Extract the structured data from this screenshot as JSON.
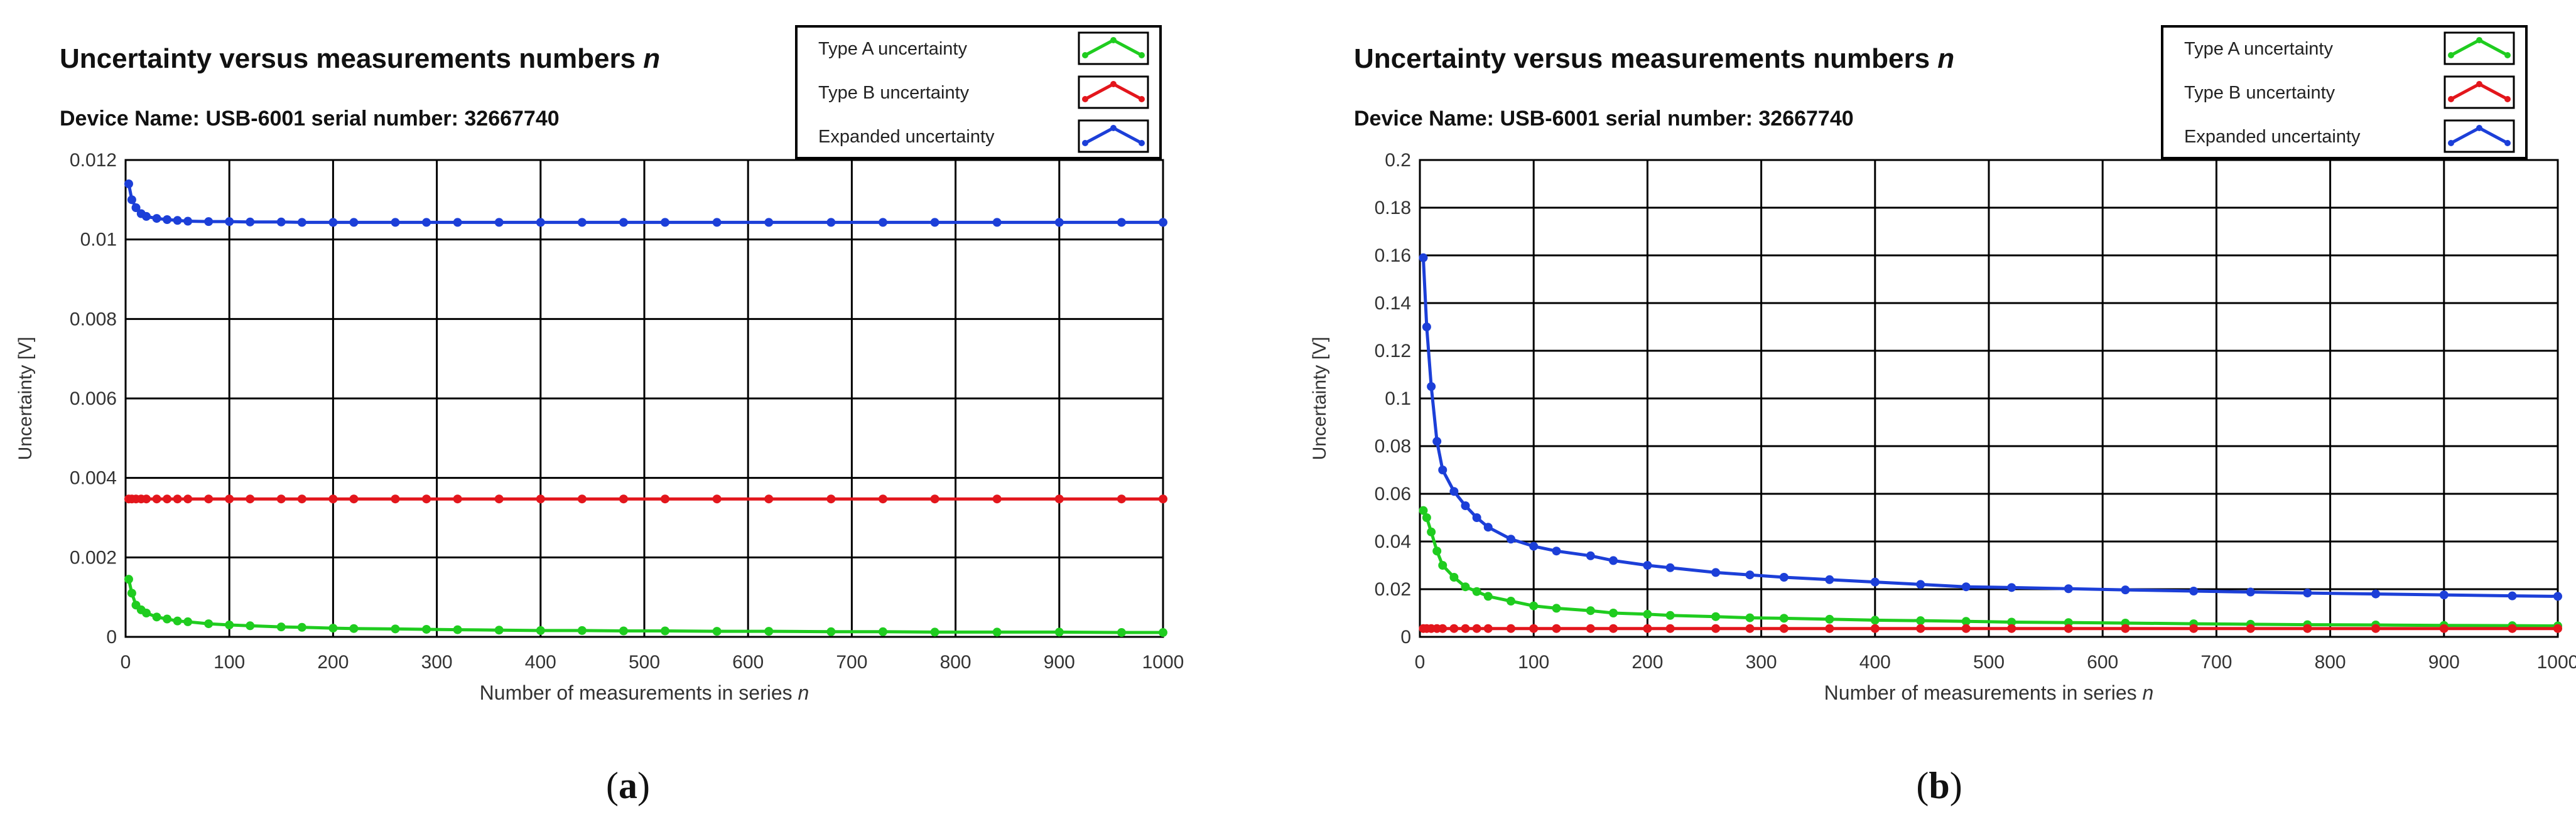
{
  "colors": {
    "type_a": "#1fcc1f",
    "type_b": "#e3161c",
    "expanded": "#1c3fd8",
    "grid": "#000000",
    "background": "#ffffff"
  },
  "chart_data": [
    {
      "type": "line",
      "panel": "a",
      "title_main": "Uncertainty versus measurements numbers ",
      "title_var": "n",
      "subtitle": "Device Name: USB-6001 serial number: 32667740",
      "xlabel_main": "Number of measurements in series ",
      "xlabel_var": "n",
      "ylabel": "Uncertainty [V]",
      "caption_letter": "a",
      "xlim": [
        0,
        1000
      ],
      "ylim": [
        0,
        0.012
      ],
      "x_ticks": [
        "0",
        "100",
        "200",
        "300",
        "400",
        "500",
        "600",
        "700",
        "800",
        "900",
        "1000"
      ],
      "y_ticks": [
        "0",
        "0.002",
        "0.004",
        "0.006",
        "0.008",
        "0.01",
        "0.012"
      ],
      "grid": true,
      "legend_position": "top-right",
      "series": [
        {
          "name": "Type A uncertainty",
          "color": "#1fcc1f",
          "x": [
            3,
            6,
            10,
            15,
            20,
            30,
            40,
            50,
            60,
            80,
            100,
            120,
            150,
            170,
            200,
            220,
            260,
            290,
            320,
            360,
            400,
            440,
            480,
            520,
            570,
            620,
            680,
            730,
            780,
            840,
            900,
            960,
            1000
          ],
          "y": [
            0.00145,
            0.0011,
            0.0008,
            0.00068,
            0.0006,
            0.0005,
            0.00045,
            0.0004,
            0.00038,
            0.00033,
            0.0003,
            0.00028,
            0.00025,
            0.00024,
            0.00022,
            0.00021,
            0.0002,
            0.00019,
            0.00018,
            0.00017,
            0.00016,
            0.00016,
            0.00015,
            0.00015,
            0.00014,
            0.00014,
            0.00013,
            0.00013,
            0.00012,
            0.00012,
            0.00012,
            0.00011,
            0.00011
          ]
        },
        {
          "name": "Type B uncertainty",
          "color": "#e3161c",
          "x": [
            3,
            6,
            10,
            15,
            20,
            30,
            40,
            50,
            60,
            80,
            100,
            120,
            150,
            170,
            200,
            220,
            260,
            290,
            320,
            360,
            400,
            440,
            480,
            520,
            570,
            620,
            680,
            730,
            780,
            840,
            900,
            960,
            1000
          ],
          "y": [
            0.00347,
            0.00347,
            0.00347,
            0.00347,
            0.00347,
            0.00347,
            0.00347,
            0.00347,
            0.00347,
            0.00347,
            0.00347,
            0.00347,
            0.00347,
            0.00347,
            0.00347,
            0.00347,
            0.00347,
            0.00347,
            0.00347,
            0.00347,
            0.00347,
            0.00347,
            0.00347,
            0.00347,
            0.00347,
            0.00347,
            0.00347,
            0.00347,
            0.00347,
            0.00347,
            0.00347,
            0.00347,
            0.00347
          ]
        },
        {
          "name": "Expanded uncertainty",
          "color": "#1c3fd8",
          "x": [
            3,
            6,
            10,
            15,
            20,
            30,
            40,
            50,
            60,
            80,
            100,
            120,
            150,
            170,
            200,
            220,
            260,
            290,
            320,
            360,
            400,
            440,
            480,
            520,
            570,
            620,
            680,
            730,
            780,
            840,
            900,
            960,
            1000
          ],
          "y": [
            0.0114,
            0.011,
            0.0108,
            0.01065,
            0.01058,
            0.01053,
            0.0105,
            0.01048,
            0.01046,
            0.01045,
            0.01045,
            0.01044,
            0.01044,
            0.01043,
            0.01043,
            0.01043,
            0.01043,
            0.01043,
            0.01043,
            0.01043,
            0.01043,
            0.01043,
            0.01043,
            0.01043,
            0.01043,
            0.01043,
            0.01043,
            0.01043,
            0.01043,
            0.01043,
            0.01043,
            0.01043,
            0.01043
          ]
        }
      ]
    },
    {
      "type": "line",
      "panel": "b",
      "title_main": "Uncertainty versus measurements numbers ",
      "title_var": "n",
      "subtitle": "Device Name: USB-6001 serial number: 32667740",
      "xlabel_main": "Number of measurements in series ",
      "xlabel_var": "n",
      "ylabel": "Uncertainty [V]",
      "caption_letter": "b",
      "xlim": [
        0,
        1000
      ],
      "ylim": [
        0,
        0.2
      ],
      "x_ticks": [
        "0",
        "100",
        "200",
        "300",
        "400",
        "500",
        "600",
        "700",
        "800",
        "900",
        "1000"
      ],
      "y_ticks": [
        "0",
        "0.02",
        "0.04",
        "0.06",
        "0.08",
        "0.1",
        "0.12",
        "0.14",
        "0.16",
        "0.18",
        "0.2"
      ],
      "grid": true,
      "legend_position": "top-right",
      "series": [
        {
          "name": "Type A uncertainty",
          "color": "#1fcc1f",
          "x": [
            3,
            6,
            10,
            15,
            20,
            30,
            40,
            50,
            60,
            80,
            100,
            120,
            150,
            170,
            200,
            220,
            260,
            290,
            320,
            360,
            400,
            440,
            480,
            520,
            570,
            620,
            680,
            730,
            780,
            840,
            900,
            960,
            1000
          ],
          "y": [
            0.053,
            0.05,
            0.044,
            0.036,
            0.03,
            0.025,
            0.021,
            0.019,
            0.017,
            0.015,
            0.013,
            0.012,
            0.011,
            0.01,
            0.0095,
            0.009,
            0.0085,
            0.008,
            0.0078,
            0.0074,
            0.007,
            0.0068,
            0.0065,
            0.0062,
            0.006,
            0.0058,
            0.0055,
            0.0053,
            0.0051,
            0.005,
            0.0048,
            0.0047,
            0.0046
          ]
        },
        {
          "name": "Type B uncertainty",
          "color": "#e3161c",
          "x": [
            3,
            6,
            10,
            15,
            20,
            30,
            40,
            50,
            60,
            80,
            100,
            120,
            150,
            170,
            200,
            220,
            260,
            290,
            320,
            360,
            400,
            440,
            480,
            520,
            570,
            620,
            680,
            730,
            780,
            840,
            900,
            960,
            1000
          ],
          "y": [
            0.0035,
            0.0035,
            0.0035,
            0.0035,
            0.0035,
            0.0035,
            0.0035,
            0.0035,
            0.0035,
            0.0035,
            0.0035,
            0.0035,
            0.0035,
            0.0035,
            0.0035,
            0.0035,
            0.0035,
            0.0035,
            0.0035,
            0.0035,
            0.0035,
            0.0035,
            0.0035,
            0.0035,
            0.0035,
            0.0035,
            0.0035,
            0.0035,
            0.0035,
            0.0035,
            0.0035,
            0.0035,
            0.0035
          ]
        },
        {
          "name": "Expanded uncertainty",
          "color": "#1c3fd8",
          "x": [
            3,
            6,
            10,
            15,
            20,
            30,
            40,
            50,
            60,
            80,
            100,
            120,
            150,
            170,
            200,
            220,
            260,
            290,
            320,
            360,
            400,
            440,
            480,
            520,
            570,
            620,
            680,
            730,
            780,
            840,
            900,
            960,
            1000
          ],
          "y": [
            0.159,
            0.13,
            0.105,
            0.082,
            0.07,
            0.061,
            0.055,
            0.05,
            0.046,
            0.041,
            0.038,
            0.036,
            0.034,
            0.032,
            0.03,
            0.029,
            0.027,
            0.026,
            0.025,
            0.024,
            0.023,
            0.022,
            0.021,
            0.0207,
            0.0202,
            0.0197,
            0.0192,
            0.0188,
            0.0184,
            0.018,
            0.0176,
            0.0172,
            0.017
          ]
        }
      ]
    }
  ]
}
